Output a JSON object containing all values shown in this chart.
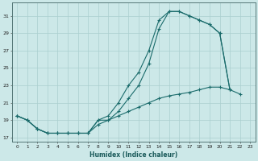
{
  "xlabel": "Humidex (Indice chaleur)",
  "bg_color": "#cce8e8",
  "line_color": "#1a6b6b",
  "grid_color": "#aacfcf",
  "xlim": [
    -0.5,
    23.5
  ],
  "ylim": [
    16.5,
    32.5
  ],
  "xticks": [
    0,
    1,
    2,
    3,
    4,
    5,
    6,
    7,
    8,
    9,
    10,
    11,
    12,
    13,
    14,
    15,
    16,
    17,
    18,
    19,
    20,
    21,
    22,
    23
  ],
  "yticks": [
    17,
    19,
    21,
    23,
    25,
    27,
    29,
    31
  ],
  "line1_y": [
    19.5,
    19.0,
    18.0,
    17.5,
    17.5,
    17.5,
    17.5,
    17.5,
    19.0,
    19.5,
    21.0,
    23.0,
    24.5,
    27.0,
    30.5,
    31.5,
    31.5,
    31.0,
    30.5,
    30.0,
    29.0,
    22.5,
    null,
    null
  ],
  "line2_y": [
    19.5,
    19.0,
    18.0,
    17.5,
    17.5,
    17.5,
    17.5,
    17.5,
    19.0,
    19.0,
    20.0,
    21.5,
    23.0,
    25.5,
    29.5,
    31.5,
    31.5,
    31.0,
    30.5,
    30.0,
    29.0,
    22.5,
    null,
    null
  ],
  "line3_y": [
    19.5,
    19.0,
    18.0,
    17.5,
    17.5,
    17.5,
    17.5,
    17.5,
    18.5,
    19.0,
    19.5,
    20.0,
    20.5,
    21.0,
    21.5,
    21.8,
    22.0,
    22.2,
    22.5,
    22.8,
    22.8,
    22.5,
    22.0,
    null
  ]
}
